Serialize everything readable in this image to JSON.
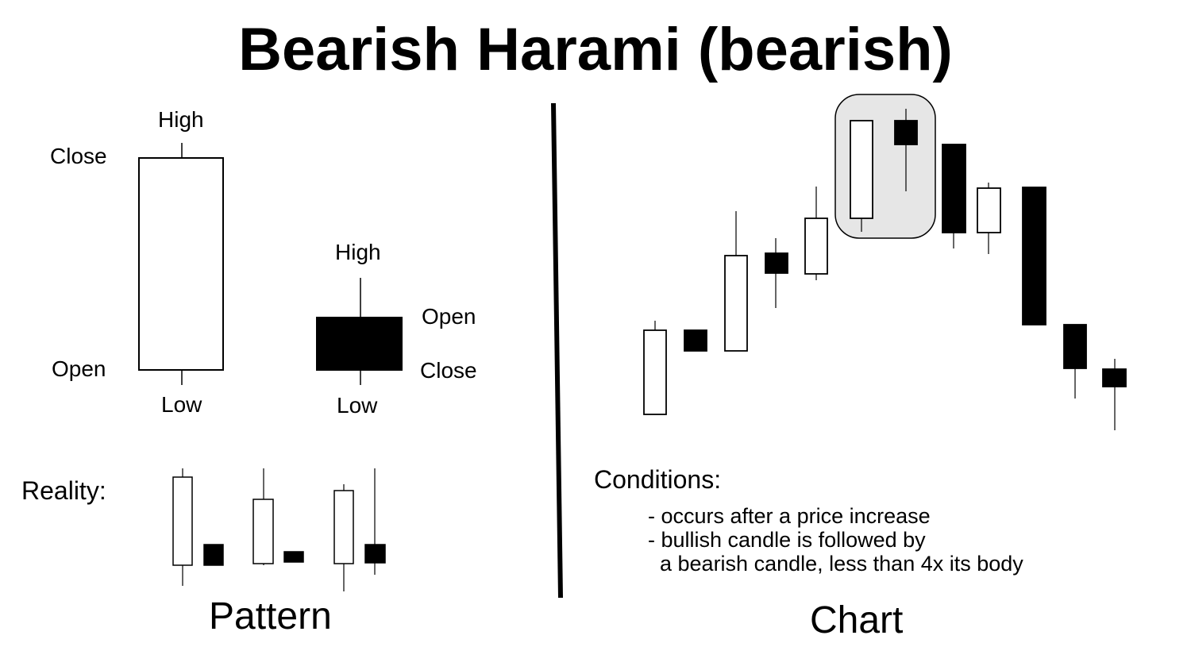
{
  "title": "Bearish Harami (bearish)",
  "pattern": {
    "bull_labels": {
      "high": "High",
      "close": "Close",
      "open": "Open",
      "low": "Low"
    },
    "bear_labels": {
      "high": "High",
      "open": "Open",
      "close": "Close",
      "low": "Low"
    },
    "reality_label": "Reality:",
    "footer": "Pattern"
  },
  "chart": {
    "footer": "Chart",
    "conditions": {
      "title": "Conditions:",
      "lines": [
        "- occurs after a price increase",
        "- bullish candle is followed by",
        "  a bearish candle, less than 4x its body"
      ]
    }
  },
  "colors": {
    "bullish_body": "#ffffff",
    "bearish_body": "#000000",
    "highlight": "#e6e6e6",
    "stroke": "#000000"
  }
}
